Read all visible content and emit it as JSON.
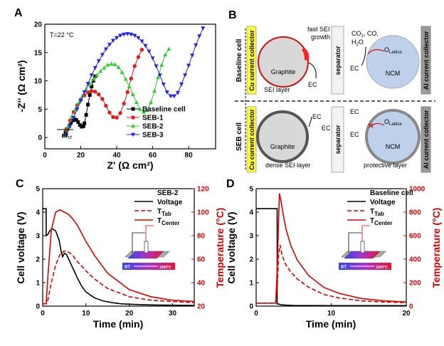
{
  "chart_data": [
    {
      "panel": "A",
      "type": "scatter",
      "annotation": "T=22 °C",
      "rct_label": "R",
      "rct_sub": "ct",
      "xlabel": "Z' (Ω cm²)",
      "ylabel": "-Z'' (Ω cm²)",
      "xlim": [
        0,
        95
      ],
      "ylim": [
        -2,
        20
      ],
      "xticks": [
        0,
        20,
        40,
        60,
        80
      ],
      "yticks": [
        0,
        5,
        10,
        15,
        20
      ],
      "series": [
        {
          "name": "Baseline cell",
          "color": "#000000",
          "marker": "square",
          "x": [
            10.5,
            11.5,
            12.5,
            13.5,
            14.5,
            15.5,
            16.5,
            17.5,
            18.5,
            19.5,
            20.5,
            21.5,
            22,
            23,
            24,
            25,
            26,
            27,
            28
          ],
          "y": [
            0.3,
            0.9,
            1.5,
            2,
            2.6,
            3,
            3.2,
            3.1,
            2.7,
            2.2,
            1.9,
            2,
            2.5,
            4,
            5.8,
            7.5,
            9,
            10,
            10.8
          ]
        },
        {
          "name": "SEB-1",
          "color": "#e41a1c",
          "marker": "circle",
          "x": [
            11,
            12,
            14,
            16,
            18,
            20,
            22,
            24,
            26,
            28,
            30,
            32,
            34,
            36,
            38,
            40,
            42,
            44,
            46,
            48,
            50,
            52,
            54
          ],
          "y": [
            0.3,
            1.5,
            3,
            4.5,
            5.7,
            6.7,
            7.4,
            8,
            8.2,
            8.1,
            7.6,
            6.8,
            5.6,
            4.4,
            3.6,
            3.5,
            4.3,
            6,
            8,
            10.4,
            12.6,
            14.2,
            15.5
          ]
        },
        {
          "name": "SEB-2",
          "color": "#33cc33",
          "marker": "triangle-up",
          "x": [
            11,
            13,
            15,
            17,
            19,
            21,
            23,
            25,
            27,
            29,
            31,
            33,
            35,
            37,
            39,
            41,
            43,
            45,
            47,
            49,
            51,
            53,
            55,
            57,
            59,
            61,
            63,
            65,
            67,
            69
          ],
          "y": [
            0.3,
            2,
            3.7,
            5,
            6.2,
            7.4,
            8.4,
            9.4,
            10.3,
            11,
            11.7,
            12.3,
            12.8,
            13,
            12.9,
            12.4,
            11.5,
            10.3,
            9,
            7.6,
            6.2,
            5,
            4.5,
            4.8,
            6.2,
            8.2,
            10.6,
            12.8,
            14.6,
            15.6
          ]
        },
        {
          "name": "SEB-3",
          "color": "#2222ee",
          "marker": "triangle-down",
          "x": [
            12,
            14,
            16,
            18,
            20,
            22,
            24,
            26,
            28,
            30,
            32,
            34,
            36,
            38,
            40,
            42,
            44,
            46,
            48,
            50,
            52,
            54,
            56,
            58,
            60,
            62,
            64,
            66,
            68,
            70,
            72,
            74,
            76,
            78,
            80,
            82,
            84,
            86,
            88
          ],
          "y": [
            0.3,
            2,
            3.5,
            5,
            6.5,
            8,
            9.5,
            11,
            12.3,
            13.5,
            14.6,
            15.6,
            16.4,
            17.1,
            17.6,
            18,
            18.2,
            18.3,
            18.2,
            18,
            17.6,
            17,
            16.2,
            15.2,
            14,
            12.6,
            11,
            9.4,
            8,
            7.3,
            7.3,
            7.9,
            9.4,
            11,
            12.7,
            14.5,
            16.3,
            17.9,
            19.3
          ]
        }
      ]
    },
    {
      "panel": "B",
      "type": "diagram",
      "rows": [
        {
          "label": "Baseline cell",
          "cu_collector": "Cu current collector",
          "al_collector": "Al current collector",
          "separator": "separator",
          "graphite": "Graphite",
          "ncm": "NCM",
          "sei": "SEI layer",
          "growth_1": "fast SEI",
          "growth_2": "growth",
          "ec": "EC",
          "gas_1": "CO",
          "gas_1_sub": "2",
          "gas_2": ", CO,",
          "gas_3": "H",
          "gas_3_sub": "2",
          "gas_4": "O",
          "o_lattice": "O",
          "o_lattice_sub": "Lattice"
        },
        {
          "label": "SEB cell",
          "cu_collector": "Cu current collector",
          "al_collector": "Al current collector",
          "separator": "separator",
          "graphite": "Graphite",
          "ncm": "NCM",
          "sei": "dense SEI layer",
          "protective": "protective layer",
          "ec": "EC",
          "o_lattice": "O",
          "o_lattice_sub": "Lattice"
        }
      ]
    },
    {
      "panel": "C",
      "type": "line",
      "legend_title": "SEB-2",
      "xlabel": "Time (min)",
      "ylabel_left": "Cell voltage (V)",
      "ylabel_right": "Temperature (°C)",
      "xlim": [
        0,
        35
      ],
      "xticks": [
        0,
        10,
        20,
        30
      ],
      "ylim_left": [
        0,
        5
      ],
      "yticks_left": [
        0,
        1,
        2,
        3,
        4,
        5
      ],
      "ylim_right": [
        20,
        120
      ],
      "yticks_right": [
        20,
        40,
        60,
        80,
        100,
        120
      ],
      "inset_rt": "RT",
      "inset_hot": "1000°C",
      "series": [
        {
          "name": "Voltage",
          "axis": "left",
          "color": "#000000",
          "dash": "solid",
          "x": [
            0,
            0.8,
            0.8,
            1.2,
            1.6,
            2.2,
            3,
            3.8,
            4.3,
            4.6,
            5,
            5.5,
            6,
            7,
            8,
            9,
            10,
            12,
            14,
            16,
            18,
            20,
            25,
            30,
            35
          ],
          "y": [
            4.15,
            4.15,
            3.0,
            3.05,
            3.2,
            3.3,
            3.2,
            2.8,
            2.3,
            2.1,
            2.25,
            2.2,
            2.0,
            1.6,
            1.2,
            0.85,
            0.6,
            0.35,
            0.22,
            0.15,
            0.1,
            0.08,
            0.05,
            0.04,
            0.03
          ]
        },
        {
          "name": "T",
          "sub": "Tab",
          "axis": "right",
          "color": "#dd0000",
          "dash": "dashed",
          "x": [
            0,
            0.8,
            1.2,
            2,
            3,
            4,
            5,
            6,
            7,
            8,
            10,
            12,
            15,
            20,
            25,
            30,
            35
          ],
          "y": [
            22,
            22,
            25,
            40,
            55,
            64,
            67,
            66,
            63,
            58,
            50,
            43,
            35,
            28,
            25,
            24,
            23
          ]
        },
        {
          "name": "T",
          "sub": "Center",
          "axis": "right",
          "color": "#dd0000",
          "dash": "solid",
          "x": [
            0,
            0.8,
            1.2,
            2,
            3,
            4,
            5,
            6,
            7,
            8,
            9,
            10,
            12,
            15,
            20,
            25,
            30,
            35
          ],
          "y": [
            22,
            22,
            45,
            85,
            100,
            102,
            100,
            98,
            94,
            89,
            82,
            75,
            63,
            48,
            34,
            28,
            25,
            24
          ]
        }
      ]
    },
    {
      "panel": "D",
      "type": "line",
      "legend_title": "Baseline cell",
      "xlabel": "Time (min)",
      "ylabel_left": "Cell voltage (V)",
      "ylabel_right": "Temperature (°C)",
      "xlim": [
        0,
        20
      ],
      "xticks": [
        0,
        10,
        20
      ],
      "ylim_left": [
        0,
        5
      ],
      "yticks_left": [
        0,
        1,
        2,
        3,
        4,
        5
      ],
      "ylim_right": [
        0,
        1000
      ],
      "yticks_right": [
        0,
        200,
        400,
        600,
        800,
        1000
      ],
      "inset_rt": "RT",
      "inset_hot": "1000°C",
      "series": [
        {
          "name": "Voltage",
          "axis": "left",
          "color": "#000000",
          "dash": "solid",
          "x": [
            0,
            2.8,
            2.8,
            3.5,
            5,
            10,
            20
          ],
          "y": [
            4.15,
            4.15,
            0.1,
            0.05,
            0.03,
            0.02,
            0.02
          ]
        },
        {
          "name": "T",
          "sub": "Tab",
          "axis": "right",
          "color": "#dd0000",
          "dash": "dashed",
          "x": [
            0,
            2.6,
            2.8,
            3,
            3.2,
            3.4,
            3.8,
            4.5,
            5.5,
            7,
            9,
            11,
            14,
            17,
            20
          ],
          "y": [
            25,
            25,
            150,
            450,
            520,
            450,
            370,
            300,
            230,
            160,
            100,
            70,
            45,
            35,
            30
          ]
        },
        {
          "name": "T",
          "sub": "Center",
          "axis": "right",
          "color": "#dd0000",
          "dash": "solid",
          "x": [
            0,
            2.6,
            2.8,
            3,
            3.1,
            3.3,
            3.6,
            4,
            4.6,
            5.5,
            7,
            9,
            11,
            14,
            17,
            20
          ],
          "y": [
            25,
            25,
            300,
            750,
            960,
            900,
            780,
            650,
            520,
            390,
            260,
            160,
            110,
            65,
            45,
            35
          ]
        }
      ]
    }
  ]
}
